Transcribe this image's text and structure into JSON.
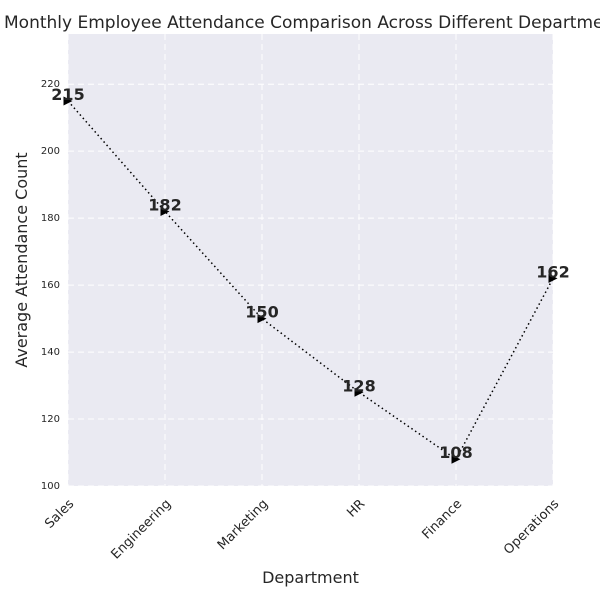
{
  "chart_data": {
    "type": "line",
    "title": "Monthly Employee Attendance Comparison Across Different Departments",
    "xlabel": "Department",
    "ylabel": "Average Attendance Count",
    "categories": [
      "Sales",
      "Engineering",
      "Marketing",
      "HR",
      "Finance",
      "Operations"
    ],
    "series": [
      {
        "values": [
          215,
          182,
          150,
          128,
          108,
          162
        ]
      }
    ],
    "ylim": [
      100,
      235
    ],
    "yticks": [
      100,
      120,
      140,
      160,
      180,
      200,
      220
    ],
    "grid": true,
    "line_style": "dotted",
    "marker": "triangle-right",
    "colors": {
      "background": "#eaeaf2",
      "grid": "#ffffff",
      "line": "#000000",
      "text": "#262626"
    }
  }
}
